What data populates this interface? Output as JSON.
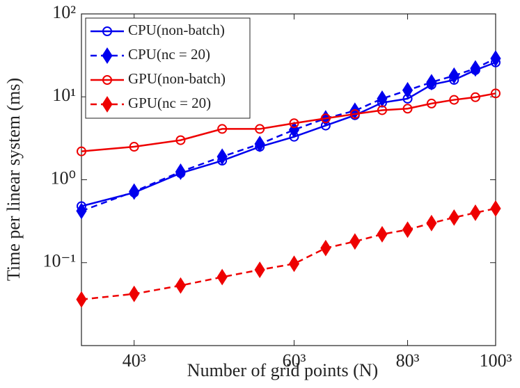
{
  "chart_data": {
    "type": "line",
    "x_label": "Number of grid points (N)",
    "y_label": "Time per linear system (ms)",
    "x": [
      42875,
      64000,
      91125,
      125000,
      166375,
      216000,
      274625,
      343000,
      421875,
      512000,
      614125,
      729000,
      857375,
      1000000
    ],
    "series": [
      {
        "name": "CPU(non-batch)",
        "color": "#0000ee",
        "marker": "circle",
        "dash": false,
        "values": [
          0.48,
          0.7,
          1.2,
          1.7,
          2.5,
          3.3,
          4.5,
          6.0,
          8.5,
          9.5,
          14,
          16,
          21,
          26
        ]
      },
      {
        "name": "CPU(nc = 20)",
        "color": "#0000ee",
        "marker": "diamond",
        "dash": true,
        "values": [
          0.42,
          0.72,
          1.25,
          1.9,
          2.7,
          4.0,
          5.5,
          6.8,
          9.5,
          12,
          15,
          18,
          22,
          29
        ]
      },
      {
        "name": "GPU(non-batch)",
        "color": "#ee0000",
        "marker": "circle",
        "dash": false,
        "values": [
          2.2,
          2.5,
          3.0,
          4.1,
          4.1,
          4.8,
          5.5,
          6.2,
          6.9,
          7.2,
          8.3,
          9.2,
          9.9,
          11
        ]
      },
      {
        "name": "GPU(nc = 20)",
        "color": "#ee0000",
        "marker": "diamond",
        "dash": true,
        "values": [
          0.036,
          0.042,
          0.053,
          0.067,
          0.082,
          0.097,
          0.15,
          0.18,
          0.22,
          0.25,
          0.3,
          0.35,
          0.4,
          0.45
        ]
      }
    ],
    "xlim": [
      42875,
      1000000
    ],
    "xticks": [
      {
        "value": 64000,
        "label": "40³"
      },
      {
        "value": 216000,
        "label": "60³"
      },
      {
        "value": 512000,
        "label": "80³"
      },
      {
        "value": 1000000,
        "label": "100³"
      }
    ],
    "ylim": [
      0.01,
      100
    ],
    "yticks": [
      {
        "value": 0.1,
        "label": "10⁻¹"
      },
      {
        "value": 1,
        "label": "10⁰"
      },
      {
        "value": 10,
        "label": "10¹"
      },
      {
        "value": 100,
        "label": "10²"
      }
    ],
    "x_log": true,
    "y_log": true,
    "grid": false,
    "legend": "upper left"
  }
}
